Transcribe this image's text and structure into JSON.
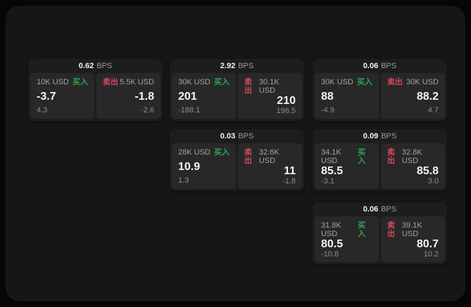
{
  "labels": {
    "bps_unit": "BPS",
    "buy": "买入",
    "sell": "卖出"
  },
  "colors": {
    "buy": "#2fa452",
    "sell": "#d5485f",
    "stage_background": "#161616",
    "card_background": "#1d1d1d",
    "panel_background": "#282828"
  },
  "cards": [
    {
      "bps": "0.62",
      "row": 0,
      "col": 0,
      "buy": {
        "amount": "10K USD",
        "price": "-3.7",
        "delta": "4.3"
      },
      "sell": {
        "amount": "5.5K USD",
        "price": "-1.8",
        "delta": "-2.6"
      }
    },
    {
      "bps": "2.92",
      "row": 0,
      "col": 1,
      "buy": {
        "amount": "30K USD",
        "price": "201",
        "delta": "-188.1"
      },
      "sell": {
        "amount": "30.1K USD",
        "price": "210",
        "delta": "196.5"
      }
    },
    {
      "bps": "0.06",
      "row": 0,
      "col": 2,
      "buy": {
        "amount": "30K USD",
        "price": "88",
        "delta": "-4.9"
      },
      "sell": {
        "amount": "30K USD",
        "price": "88.2",
        "delta": "4.7"
      }
    },
    {
      "bps": "0.03",
      "row": 1,
      "col": 1,
      "buy": {
        "amount": "28K USD",
        "price": "10.9",
        "delta": "1.3"
      },
      "sell": {
        "amount": "32.6K USD",
        "price": "11",
        "delta": "-1.8"
      }
    },
    {
      "bps": "0.09",
      "row": 1,
      "col": 2,
      "buy": {
        "amount": "34.1K USD",
        "price": "85.5",
        "delta": "-3.1"
      },
      "sell": {
        "amount": "32.8K USD",
        "price": "85.8",
        "delta": "3.0"
      }
    },
    {
      "bps": "0.06",
      "row": 2,
      "col": 2,
      "buy": {
        "amount": "31.8K USD",
        "price": "80.5",
        "delta": "-10.8"
      },
      "sell": {
        "amount": "39.1K USD",
        "price": "80.7",
        "delta": "10.2"
      }
    }
  ]
}
